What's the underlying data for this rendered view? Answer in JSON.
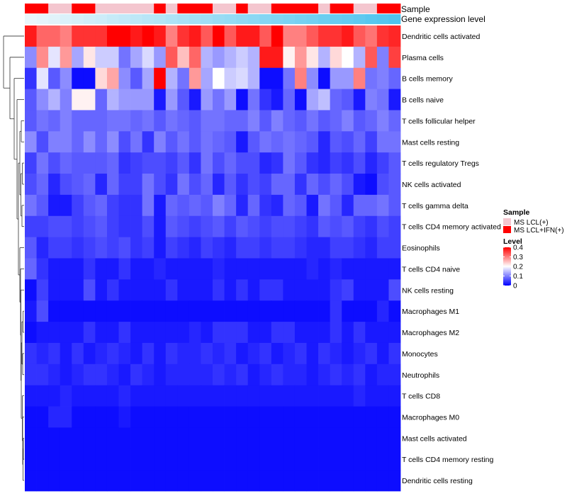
{
  "chart_data": {
    "type": "heatmap",
    "annotation_labels": [
      "Sample",
      "Gene expression level"
    ],
    "sample_groups": [
      1,
      1,
      0,
      0,
      1,
      1,
      0,
      0,
      0,
      0,
      0,
      1,
      0,
      1,
      1,
      1,
      0,
      0,
      1,
      0,
      0,
      1,
      1,
      1,
      1,
      0,
      1,
      1,
      0,
      0,
      1,
      1
    ],
    "gene_expression_level": [
      0.0,
      0.03,
      0.06,
      0.1,
      0.13,
      0.16,
      0.19,
      0.23,
      0.26,
      0.29,
      0.32,
      0.35,
      0.39,
      0.42,
      0.45,
      0.48,
      0.52,
      0.55,
      0.58,
      0.61,
      0.65,
      0.68,
      0.71,
      0.74,
      0.77,
      0.81,
      0.84,
      0.87,
      0.9,
      0.94,
      0.97,
      1.0
    ],
    "row_labels": [
      "Dendritic cells activated",
      "Plasma cells",
      "B cells memory",
      "B cells naive",
      "T cells follicular helper",
      "Mast cells resting",
      "T cells regulatory  Tregs",
      "NK cells activated",
      "T cells gamma delta",
      "T cells CD4 memory activated",
      "Eosinophils",
      "T cells CD4 naive",
      "NK cells resting",
      "Macrophages M1",
      "Macrophages M2",
      "Monocytes",
      "Neutrophils",
      "T cells CD8",
      "Macrophages M0",
      "Mast cells activated",
      "T cells CD4 memory resting",
      "Dendritic cells resting"
    ],
    "values": [
      [
        0.38,
        0.32,
        0.32,
        0.3,
        0.36,
        0.36,
        0.36,
        0.4,
        0.4,
        0.38,
        0.4,
        0.38,
        0.3,
        0.36,
        0.38,
        0.33,
        0.4,
        0.33,
        0.38,
        0.38,
        0.33,
        0.4,
        0.3,
        0.3,
        0.33,
        0.36,
        0.36,
        0.38,
        0.33,
        0.31,
        0.36,
        0.37
      ],
      [
        0.11,
        0.29,
        0.18,
        0.28,
        0.13,
        0.22,
        0.16,
        0.16,
        0.09,
        0.13,
        0.17,
        0.12,
        0.33,
        0.25,
        0.32,
        0.14,
        0.12,
        0.14,
        0.16,
        0.14,
        0.38,
        0.38,
        0.21,
        0.28,
        0.22,
        0.14,
        0.23,
        0.2,
        0.14,
        0.33,
        0.1,
        0.35
      ],
      [
        0.04,
        0.18,
        0.07,
        0.11,
        0.01,
        0.01,
        0.23,
        0.27,
        0.11,
        0.07,
        0.13,
        0.4,
        0.14,
        0.09,
        0.28,
        0.13,
        0.2,
        0.16,
        0.17,
        0.14,
        0.01,
        0.01,
        0.09,
        0.3,
        0.11,
        0.01,
        0.12,
        0.12,
        0.3,
        0.09,
        0.1,
        0.08
      ],
      [
        0.07,
        0.11,
        0.14,
        0.1,
        0.21,
        0.21,
        0.08,
        0.14,
        0.12,
        0.12,
        0.12,
        0.02,
        0.12,
        0.07,
        0.02,
        0.12,
        0.09,
        0.12,
        0.01,
        0.09,
        0.04,
        0.02,
        0.08,
        0.01,
        0.13,
        0.15,
        0.08,
        0.07,
        0.02,
        0.1,
        0.09,
        0.02
      ],
      [
        0.07,
        0.09,
        0.08,
        0.1,
        0.08,
        0.08,
        0.08,
        0.09,
        0.09,
        0.08,
        0.09,
        0.07,
        0.09,
        0.08,
        0.07,
        0.09,
        0.09,
        0.08,
        0.08,
        0.1,
        0.07,
        0.1,
        0.08,
        0.07,
        0.09,
        0.07,
        0.08,
        0.1,
        0.07,
        0.08,
        0.1,
        0.08
      ],
      [
        0.11,
        0.06,
        0.1,
        0.1,
        0.08,
        0.11,
        0.08,
        0.11,
        0.06,
        0.09,
        0.04,
        0.1,
        0.07,
        0.09,
        0.07,
        0.09,
        0.08,
        0.07,
        0.02,
        0.07,
        0.09,
        0.08,
        0.09,
        0.08,
        0.07,
        0.03,
        0.07,
        0.06,
        0.08,
        0.05,
        0.09,
        0.09
      ],
      [
        0.05,
        0.09,
        0.06,
        0.08,
        0.07,
        0.07,
        0.07,
        0.08,
        0.04,
        0.05,
        0.06,
        0.06,
        0.05,
        0.07,
        0.04,
        0.09,
        0.06,
        0.08,
        0.06,
        0.06,
        0.03,
        0.04,
        0.09,
        0.07,
        0.04,
        0.03,
        0.05,
        0.04,
        0.06,
        0.03,
        0.05,
        0.07
      ],
      [
        0.06,
        0.08,
        0.03,
        0.06,
        0.07,
        0.08,
        0.03,
        0.08,
        0.05,
        0.05,
        0.09,
        0.06,
        0.04,
        0.09,
        0.06,
        0.08,
        0.03,
        0.07,
        0.04,
        0.06,
        0.05,
        0.08,
        0.08,
        0.04,
        0.08,
        0.06,
        0.08,
        0.06,
        0.02,
        0.01,
        0.06,
        0.07
      ],
      [
        0.09,
        0.07,
        0.02,
        0.02,
        0.05,
        0.07,
        0.08,
        0.05,
        0.04,
        0.04,
        0.09,
        0.02,
        0.08,
        0.07,
        0.08,
        0.07,
        0.1,
        0.08,
        0.03,
        0.08,
        0.04,
        0.03,
        0.08,
        0.07,
        0.02,
        0.09,
        0.07,
        0.03,
        0.08,
        0.08,
        0.09,
        0.07
      ],
      [
        0.05,
        0.05,
        0.06,
        0.06,
        0.05,
        0.06,
        0.07,
        0.05,
        0.04,
        0.04,
        0.06,
        0.02,
        0.07,
        0.06,
        0.05,
        0.06,
        0.07,
        0.05,
        0.07,
        0.06,
        0.05,
        0.06,
        0.06,
        0.05,
        0.04,
        0.07,
        0.06,
        0.07,
        0.05,
        0.04,
        0.06,
        0.05
      ],
      [
        0.07,
        0.03,
        0.05,
        0.05,
        0.04,
        0.05,
        0.06,
        0.05,
        0.06,
        0.04,
        0.05,
        0.02,
        0.05,
        0.04,
        0.03,
        0.05,
        0.04,
        0.03,
        0.05,
        0.05,
        0.04,
        0.05,
        0.05,
        0.04,
        0.03,
        0.03,
        0.05,
        0.05,
        0.04,
        0.03,
        0.05,
        0.05
      ],
      [
        0.08,
        0.04,
        0.02,
        0.02,
        0.02,
        0.04,
        0.02,
        0.02,
        0.04,
        0.02,
        0.02,
        0.03,
        0.02,
        0.02,
        0.02,
        0.02,
        0.03,
        0.02,
        0.02,
        0.02,
        0.02,
        0.02,
        0.02,
        0.02,
        0.03,
        0.02,
        0.03,
        0.02,
        0.02,
        0.02,
        0.02,
        0.02
      ],
      [
        0.01,
        0.05,
        0.02,
        0.02,
        0.02,
        0.06,
        0.02,
        0.04,
        0.02,
        0.02,
        0.02,
        0.02,
        0.04,
        0.02,
        0.02,
        0.02,
        0.04,
        0.02,
        0.04,
        0.02,
        0.04,
        0.04,
        0.02,
        0.02,
        0.02,
        0.02,
        0.04,
        0.05,
        0.02,
        0.02,
        0.02,
        0.06
      ],
      [
        0.02,
        0.06,
        0.01,
        0.01,
        0.01,
        0.01,
        0.01,
        0.01,
        0.01,
        0.01,
        0.01,
        0.01,
        0.01,
        0.01,
        0.01,
        0.01,
        0.01,
        0.01,
        0.01,
        0.01,
        0.01,
        0.01,
        0.01,
        0.01,
        0.01,
        0.01,
        0.04,
        0.01,
        0.01,
        0.01,
        0.03,
        0.01
      ],
      [
        0.01,
        0.02,
        0.02,
        0.02,
        0.02,
        0.04,
        0.02,
        0.02,
        0.04,
        0.02,
        0.02,
        0.02,
        0.02,
        0.02,
        0.03,
        0.02,
        0.04,
        0.04,
        0.04,
        0.02,
        0.02,
        0.04,
        0.04,
        0.02,
        0.02,
        0.02,
        0.04,
        0.02,
        0.04,
        0.02,
        0.02,
        0.02
      ],
      [
        0.04,
        0.03,
        0.04,
        0.02,
        0.04,
        0.02,
        0.03,
        0.04,
        0.03,
        0.02,
        0.04,
        0.02,
        0.04,
        0.03,
        0.03,
        0.04,
        0.03,
        0.04,
        0.02,
        0.03,
        0.04,
        0.02,
        0.03,
        0.04,
        0.02,
        0.04,
        0.03,
        0.02,
        0.03,
        0.04,
        0.02,
        0.04
      ],
      [
        0.04,
        0.04,
        0.03,
        0.02,
        0.03,
        0.04,
        0.04,
        0.03,
        0.02,
        0.04,
        0.03,
        0.02,
        0.03,
        0.03,
        0.03,
        0.03,
        0.04,
        0.03,
        0.04,
        0.02,
        0.03,
        0.04,
        0.03,
        0.03,
        0.02,
        0.03,
        0.04,
        0.03,
        0.04,
        0.02,
        0.03,
        0.03
      ],
      [
        0.02,
        0.02,
        0.02,
        0.03,
        0.02,
        0.02,
        0.02,
        0.02,
        0.03,
        0.02,
        0.02,
        0.02,
        0.02,
        0.02,
        0.02,
        0.02,
        0.02,
        0.02,
        0.02,
        0.02,
        0.02,
        0.02,
        0.02,
        0.02,
        0.02,
        0.02,
        0.02,
        0.02,
        0.03,
        0.02,
        0.02,
        0.02
      ],
      [
        0.01,
        0.01,
        0.03,
        0.03,
        0.01,
        0.01,
        0.01,
        0.01,
        0.02,
        0.01,
        0.01,
        0.01,
        0.01,
        0.01,
        0.01,
        0.01,
        0.01,
        0.01,
        0.01,
        0.01,
        0.01,
        0.01,
        0.01,
        0.01,
        0.01,
        0.01,
        0.01,
        0.01,
        0.01,
        0.01,
        0.01,
        0.01
      ],
      [
        0.01,
        0.01,
        0.01,
        0.01,
        0.01,
        0.01,
        0.01,
        0.01,
        0.01,
        0.01,
        0.01,
        0.01,
        0.01,
        0.01,
        0.01,
        0.01,
        0.01,
        0.01,
        0.01,
        0.01,
        0.01,
        0.01,
        0.01,
        0.01,
        0.01,
        0.01,
        0.01,
        0.01,
        0.01,
        0.01,
        0.01,
        0.01
      ],
      [
        0.01,
        0.01,
        0.01,
        0.01,
        0.01,
        0.01,
        0.01,
        0.01,
        0.01,
        0.01,
        0.01,
        0.01,
        0.01,
        0.01,
        0.01,
        0.01,
        0.01,
        0.01,
        0.01,
        0.01,
        0.01,
        0.01,
        0.01,
        0.01,
        0.01,
        0.01,
        0.01,
        0.01,
        0.01,
        0.01,
        0.01,
        0.01
      ],
      [
        0.01,
        0.01,
        0.01,
        0.01,
        0.01,
        0.01,
        0.01,
        0.01,
        0.01,
        0.01,
        0.01,
        0.01,
        0.01,
        0.01,
        0.01,
        0.01,
        0.01,
        0.01,
        0.01,
        0.01,
        0.01,
        0.01,
        0.01,
        0.01,
        0.01,
        0.01,
        0.01,
        0.01,
        0.01,
        0.01,
        0.01,
        0.01
      ]
    ],
    "value_range": [
      0,
      0.4
    ],
    "color_scale": [
      "#0000ff",
      "#ffffff",
      "#ff0000"
    ],
    "dendrogram": "left",
    "legend": {
      "position": "right",
      "sample": {
        "title": "Sample",
        "entries": [
          {
            "label": "MS LCL(+)",
            "color": "#f4c6cf"
          },
          {
            "label": "MS LCL+IFN(+)",
            "color": "#ff0000"
          }
        ]
      },
      "level": {
        "title": "Level",
        "ticks": [
          0.4,
          0.3,
          0.2,
          0.1,
          0
        ],
        "tick_labels": [
          "0.4",
          "0.3",
          "0.2",
          "0.1",
          "0"
        ]
      }
    },
    "gene_expression_colors": [
      "#eaf6fb",
      "#4fc4ee"
    ]
  }
}
